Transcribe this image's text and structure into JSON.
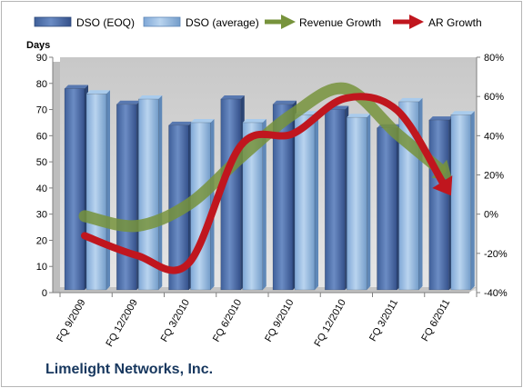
{
  "company": "Limelight Networks, Inc.",
  "colors": {
    "dso_eoq": "#4f6fa8",
    "dso_average": "#9dc3e6",
    "revenue_growth": "#77933c",
    "ar_growth": "#c0161e",
    "plot_background": "#d9d9d9"
  },
  "chart_data": {
    "type": "bar",
    "categories": [
      "FQ 9/2009",
      "FQ 12/2009",
      "FQ 3/2010",
      "FQ 6/2010",
      "FQ 9/2010",
      "FQ 12/2010",
      "FQ 3/2011",
      "FQ 6/2011"
    ],
    "series": [
      {
        "name": "DSO (EOQ)",
        "kind": "bar",
        "axis": "left",
        "values": [
          78,
          72,
          64,
          74,
          72,
          70,
          63,
          66
        ]
      },
      {
        "name": "DSO (average)",
        "kind": "bar",
        "axis": "left",
        "values": [
          76,
          74,
          65,
          65,
          68,
          67,
          73,
          68
        ]
      },
      {
        "name": "Revenue Growth",
        "kind": "line-arrow",
        "axis": "right",
        "unit": "%",
        "values": [
          -1,
          -6,
          5,
          29,
          51,
          64,
          41,
          19
        ]
      },
      {
        "name": "AR Growth",
        "kind": "line-arrow",
        "axis": "right",
        "unit": "%",
        "values": [
          -11,
          -21,
          -25,
          35,
          41,
          59,
          53,
          11
        ]
      }
    ],
    "ylabel": "Days",
    "ylim": [
      0,
      90
    ],
    "yticks": [
      0,
      10,
      20,
      30,
      40,
      50,
      60,
      70,
      80,
      90
    ],
    "y2lim": [
      -40,
      80
    ],
    "y2ticks": [
      "-40%",
      "-20%",
      "0%",
      "20%",
      "40%",
      "60%",
      "80%"
    ],
    "grid": false,
    "legend_position": "top"
  }
}
